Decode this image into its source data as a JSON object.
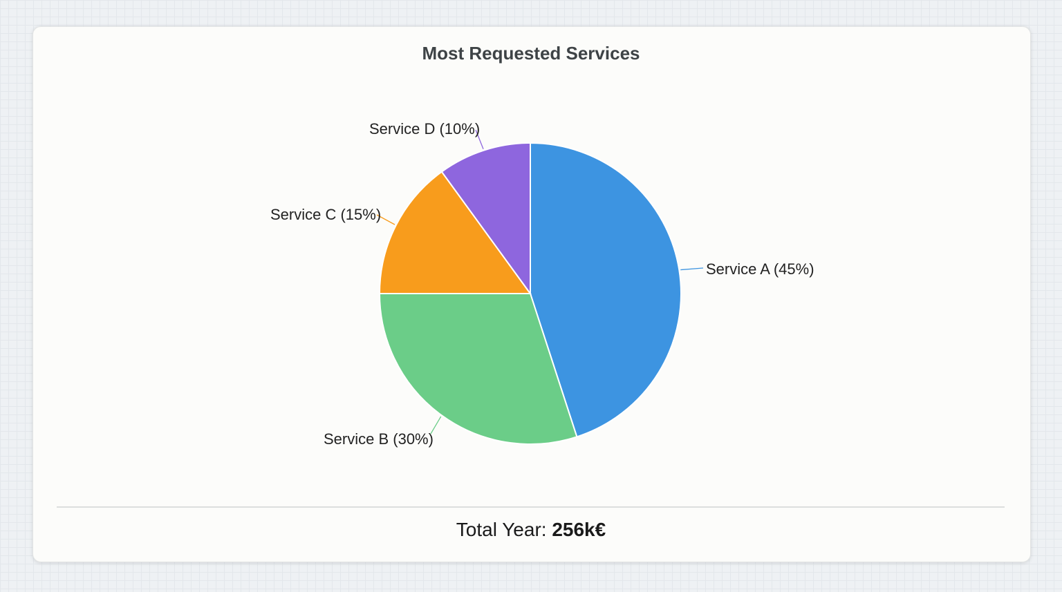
{
  "chart_data": {
    "type": "pie",
    "title": "Most Requested Services",
    "categories": [
      "Service A",
      "Service B",
      "Service C",
      "Service D"
    ],
    "values": [
      45,
      30,
      15,
      10
    ],
    "labels": [
      "Service A (45%)",
      "Service B (30%)",
      "Service C (15%)",
      "Service D (10%)"
    ],
    "colors": [
      "#3d94e1",
      "#6bcd88",
      "#f89c1c",
      "#8e66de"
    ],
    "start_angle": "12 o'clock",
    "direction": "clockwise"
  },
  "footer": {
    "label": "Total Year:",
    "value": "256k€"
  }
}
